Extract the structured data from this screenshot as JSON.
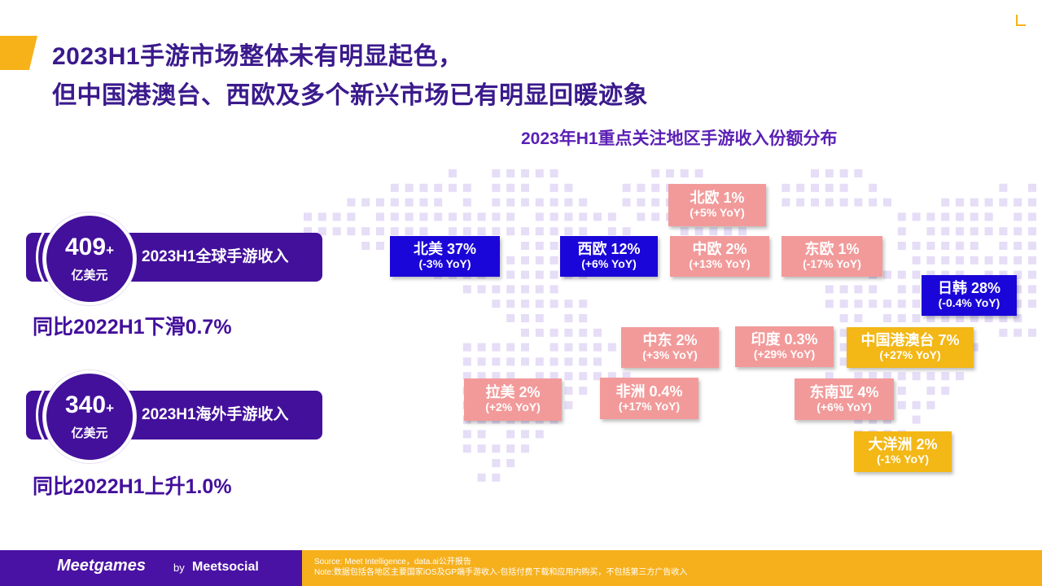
{
  "title": {
    "line1": "2023H1手游市场整体未有明显起色，",
    "line2": "但中国港澳台、西欧及多个新兴市场已有明显回暖迹象"
  },
  "map": {
    "title": "2023年H1重点关注地区手游收入份额分布",
    "regions": [
      {
        "name": "北美 37%",
        "yoy": "(-3% YoY)",
        "color": "blue"
      },
      {
        "name": "西欧 12%",
        "yoy": "(+6% YoY)",
        "color": "blue"
      },
      {
        "name": "北欧 1%",
        "yoy": "(+5% YoY)",
        "color": "pink"
      },
      {
        "name": "中欧 2%",
        "yoy": "(+13% YoY)",
        "color": "pink"
      },
      {
        "name": "东欧 1%",
        "yoy": "(-17% YoY)",
        "color": "pink"
      },
      {
        "name": "日韩 28%",
        "yoy": "(-0.4% YoY)",
        "color": "blue"
      },
      {
        "name": "中东 2%",
        "yoy": "(+3% YoY)",
        "color": "pink"
      },
      {
        "name": "印度 0.3%",
        "yoy": "(+29% YoY)",
        "color": "pink"
      },
      {
        "name": "中国港澳台 7%",
        "yoy": "(+27% YoY)",
        "color": "yellow"
      },
      {
        "name": "拉美 2%",
        "yoy": "(+2% YoY)",
        "color": "pink"
      },
      {
        "name": "非洲 0.4%",
        "yoy": "(+17% YoY)",
        "color": "pink"
      },
      {
        "name": "东南亚 4%",
        "yoy": "(+6% YoY)",
        "color": "pink"
      },
      {
        "name": "大洋洲 2%",
        "yoy": "(-1% YoY)",
        "color": "yellow"
      }
    ]
  },
  "stats": [
    {
      "value": "409",
      "plus": "+",
      "unit": "亿美元",
      "label": "2023H1全球手游收入",
      "change": "同比2022H1下滑0.7%"
    },
    {
      "value": "340",
      "plus": "+",
      "unit": "亿美元",
      "label": "2023H1海外手游收入",
      "change": "同比2022H1上升1.0%"
    }
  ],
  "footer": {
    "brand": "Meetgames",
    "by": "by",
    "brand2": "Meetsocial",
    "source": "Source: Meet Intelligence，data.ai公开报告",
    "note": "Note:数据包括各地区主要国家iOS及GP端手游收入-包括付费下载和应用内购买，不包括第三方广告收入"
  },
  "colors": {
    "blue": "#1a06d8",
    "pink": "#f29a9a",
    "yellow": "#f3b716",
    "purple": "#43109b",
    "dot": "#e6ddf7"
  }
}
